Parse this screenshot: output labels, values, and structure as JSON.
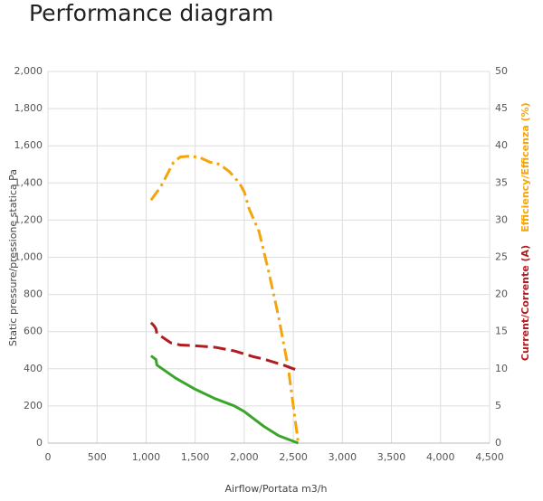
{
  "chart_data": {
    "type": "line",
    "title": "Performance diagram",
    "xlabel": "Airflow/Portata m3/h",
    "ylabel": "Static pressure/pressione statica Pa",
    "y2label": [
      "Efficiency/Efficenza (%)",
      "Current/Corrente (A)"
    ],
    "xlim": [
      0,
      4500
    ],
    "xticks": [
      0,
      500,
      {
        "value": 1000,
        "label": "1,000"
      },
      {
        "value": 1500,
        "label": "1,500"
      },
      {
        "value": 2000,
        "label": "2,000"
      },
      {
        "value": 2500,
        "label": "2,500"
      },
      {
        "value": 3000,
        "label": "3,000"
      },
      {
        "value": 3500,
        "label": "3,500"
      },
      {
        "value": 4000,
        "label": "4,000"
      },
      {
        "value": 4500,
        "label": "4,500"
      }
    ],
    "ylim": [
      0,
      2000
    ],
    "yticks": [
      0,
      200,
      400,
      600,
      800,
      {
        "value": 1000,
        "label": "1,000"
      },
      {
        "value": 1200,
        "label": "1,200"
      },
      {
        "value": 1400,
        "label": "1,400"
      },
      {
        "value": 1600,
        "label": "1,600"
      },
      {
        "value": 1800,
        "label": "1,800"
      },
      {
        "value": 2000,
        "label": "2,000"
      }
    ],
    "y2lim": [
      0,
      50
    ],
    "y2ticks": [
      0,
      5,
      10,
      15,
      20,
      25,
      30,
      35,
      40,
      45,
      50
    ],
    "grid": true,
    "series": [
      {
        "color": "#3ba52b",
        "style": "solid",
        "x": [
          1050,
          1100,
          1110,
          1300,
          1500,
          1700,
          1900,
          2000,
          2100,
          2200,
          2350,
          2450,
          2550
        ],
        "values": [
          470,
          450,
          420,
          350,
          290,
          240,
          200,
          170,
          130,
          90,
          40,
          20,
          0
        ]
      },
      {
        "color": "#f5a50a",
        "style": "dashdot",
        "axis": "y2",
        "x": [
          1050,
          1150,
          1280,
          1350,
          1450,
          1550,
          1650,
          1750,
          1850,
          1950,
          2000,
          2050,
          2150,
          2250,
          2350,
          2450,
          2500,
          2550
        ],
        "values": [
          32.7,
          34.5,
          37.8,
          38.5,
          38.6,
          38.4,
          37.8,
          37.5,
          36.5,
          35,
          33.8,
          31.5,
          28.5,
          23,
          17,
          10,
          5,
          0
        ]
      },
      {
        "color": "#b01c20",
        "style": "dashed",
        "axis": "y2",
        "x": [
          1050,
          1080,
          1100,
          1110,
          1150,
          1250,
          1350,
          1500,
          1700,
          1900,
          2000,
          2100,
          2200,
          2300,
          2400,
          2500,
          2570
        ],
        "values": [
          16.2,
          15.8,
          15.4,
          14.7,
          14.4,
          13.5,
          13.2,
          13.1,
          12.9,
          12.4,
          12.0,
          11.6,
          11.3,
          10.9,
          10.5,
          10.0,
          9.8
        ]
      }
    ]
  }
}
